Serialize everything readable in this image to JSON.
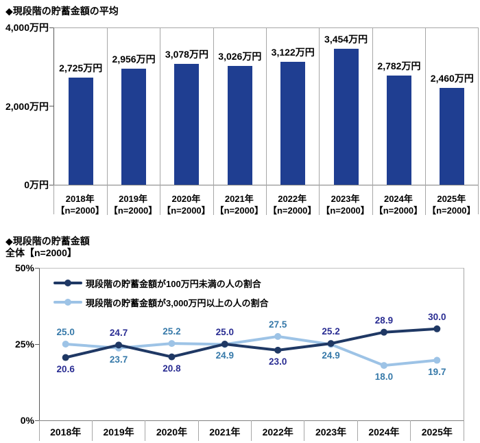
{
  "colors": {
    "bar_fill": "#1F3E91",
    "series_under_1m_line": "#1F3864",
    "series_under_1m_label": "#292C92",
    "series_over_30m_line": "#9DC3E6",
    "series_over_30m_label": "#3679A9",
    "axis_line": "#595959",
    "plot_border": "#A6A6A6",
    "text": "#000000"
  },
  "chart_data": [
    {
      "type": "bar",
      "title": "◆現段階の貯蓄金額の平均",
      "categories": [
        "2018年",
        "2019年",
        "2020年",
        "2021年",
        "2022年",
        "2023年",
        "2024年",
        "2025年"
      ],
      "category_note": "【n=2000】",
      "values": [
        2725,
        2956,
        3078,
        3026,
        3122,
        3454,
        2782,
        2460
      ],
      "value_labels": [
        "2,725万円",
        "2,956万円",
        "3,078万円",
        "3,026万円",
        "3,122万円",
        "3,454万円",
        "2,782万円",
        "2,460万円"
      ],
      "ylim": [
        0,
        4000
      ],
      "y_ticks": [
        {
          "value": 4000,
          "label": "4,000万円"
        },
        {
          "value": 2000,
          "label": "2,000万円"
        },
        {
          "value": 0,
          "label": "0万円"
        }
      ],
      "bar_color": "#1F3E91",
      "grid": "column-separators",
      "legend": "none"
    },
    {
      "type": "line",
      "title": "◆現段階の貯蓄金額",
      "subtitle": "全体【n=2000】",
      "categories": [
        "2018年",
        "2019年",
        "2020年",
        "2021年",
        "2022年",
        "2023年",
        "2024年",
        "2025年"
      ],
      "ylim": [
        0,
        50
      ],
      "y_ticks": [
        {
          "value": 50,
          "label": "50%"
        },
        {
          "value": 25,
          "label": "25%"
        },
        {
          "value": 0,
          "label": "0%"
        }
      ],
      "legend_position": "top-left-inside",
      "series": [
        {
          "name": "現段階の貯蓄金額が100万円未満の人の割合",
          "line_color": "#1F3864",
          "label_color": "#292C92",
          "marker": "circle",
          "values": [
            20.6,
            24.7,
            20.8,
            25.0,
            23.0,
            25.2,
            28.9,
            30.0
          ]
        },
        {
          "name": "現段階の貯蓄金額が3,000万円以上の人の割合",
          "line_color": "#9DC3E6",
          "label_color": "#3679A9",
          "marker": "circle",
          "values": [
            25.0,
            23.7,
            25.2,
            24.9,
            27.5,
            24.9,
            18.0,
            19.7
          ]
        }
      ]
    }
  ]
}
